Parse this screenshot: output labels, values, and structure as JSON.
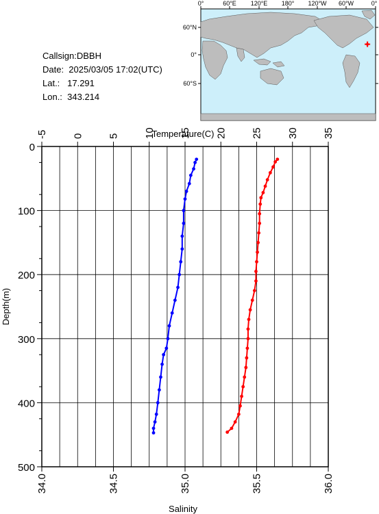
{
  "info": {
    "callsign": "Callsign:DBBH",
    "date": "Date:  2025/03/05 17:02(UTC)",
    "lat": "Lat.:   17.291",
    "lon": "Lon.:  343.214"
  },
  "map": {
    "lon_labels": [
      "0°",
      "60°E",
      "120°E",
      "180°",
      "120°W",
      "60°W",
      "0°"
    ],
    "lat_labels": [
      "60°N",
      "0°",
      "60°S"
    ],
    "ocean_color": "#cdeffa",
    "land_color": "#bdbdbd",
    "marker_color": "#ff0000",
    "marker": {
      "lat": 17.291,
      "lon": 343.214
    }
  },
  "chart_data": {
    "type": "scatter",
    "ylabel": "Depth(m)",
    "top_axis_label": "Temperature(C)",
    "bottom_axis_label": "Salinity",
    "ylim": [
      500,
      0
    ],
    "yticks": [
      "0",
      "100",
      "200",
      "300",
      "400",
      "500"
    ],
    "temp_lim": [
      -5,
      35
    ],
    "temp_ticks": [
      "-5",
      "0",
      "5",
      "10",
      "15",
      "20",
      "25",
      "30",
      "35"
    ],
    "sal_lim": [
      34.0,
      36.0
    ],
    "sal_ticks": [
      "34.0",
      "34.5",
      "35.0",
      "35.5",
      "36.0"
    ],
    "grid": true,
    "series": [
      {
        "axis": "temperature",
        "color": "#ff0000",
        "points": [
          [
            27.9,
            20
          ],
          [
            27.6,
            24
          ],
          [
            27.3,
            32
          ],
          [
            26.9,
            41
          ],
          [
            26.5,
            52
          ],
          [
            26.2,
            62
          ],
          [
            25.9,
            72
          ],
          [
            25.6,
            80
          ],
          [
            25.5,
            90
          ],
          [
            25.4,
            105
          ],
          [
            25.4,
            120
          ],
          [
            25.3,
            135
          ],
          [
            25.2,
            150
          ],
          [
            25.1,
            165
          ],
          [
            25.0,
            180
          ],
          [
            24.9,
            195
          ],
          [
            24.9,
            210
          ],
          [
            24.7,
            225
          ],
          [
            24.4,
            240
          ],
          [
            24.1,
            255
          ],
          [
            23.9,
            270
          ],
          [
            23.8,
            285
          ],
          [
            23.8,
            300
          ],
          [
            23.7,
            315
          ],
          [
            23.6,
            330
          ],
          [
            23.5,
            345
          ],
          [
            23.3,
            360
          ],
          [
            23.1,
            375
          ],
          [
            22.9,
            390
          ],
          [
            22.7,
            405
          ],
          [
            22.5,
            418
          ],
          [
            22.0,
            430
          ],
          [
            21.5,
            440
          ],
          [
            20.9,
            446
          ]
        ]
      },
      {
        "axis": "salinity",
        "color": "#0000ff",
        "points": [
          [
            35.08,
            20
          ],
          [
            35.07,
            25
          ],
          [
            35.06,
            35
          ],
          [
            35.04,
            45
          ],
          [
            35.03,
            58
          ],
          [
            35.01,
            70
          ],
          [
            35.0,
            82
          ],
          [
            34.99,
            100
          ],
          [
            34.99,
            120
          ],
          [
            34.98,
            140
          ],
          [
            34.98,
            160
          ],
          [
            34.97,
            180
          ],
          [
            34.96,
            200
          ],
          [
            34.95,
            220
          ],
          [
            34.93,
            240
          ],
          [
            34.91,
            260
          ],
          [
            34.89,
            280
          ],
          [
            34.88,
            300
          ],
          [
            34.87,
            315
          ],
          [
            34.85,
            325
          ],
          [
            34.84,
            340
          ],
          [
            34.83,
            360
          ],
          [
            34.82,
            380
          ],
          [
            34.81,
            400
          ],
          [
            34.8,
            418
          ],
          [
            34.79,
            430
          ],
          [
            34.78,
            440
          ],
          [
            34.78,
            447
          ]
        ]
      }
    ]
  }
}
